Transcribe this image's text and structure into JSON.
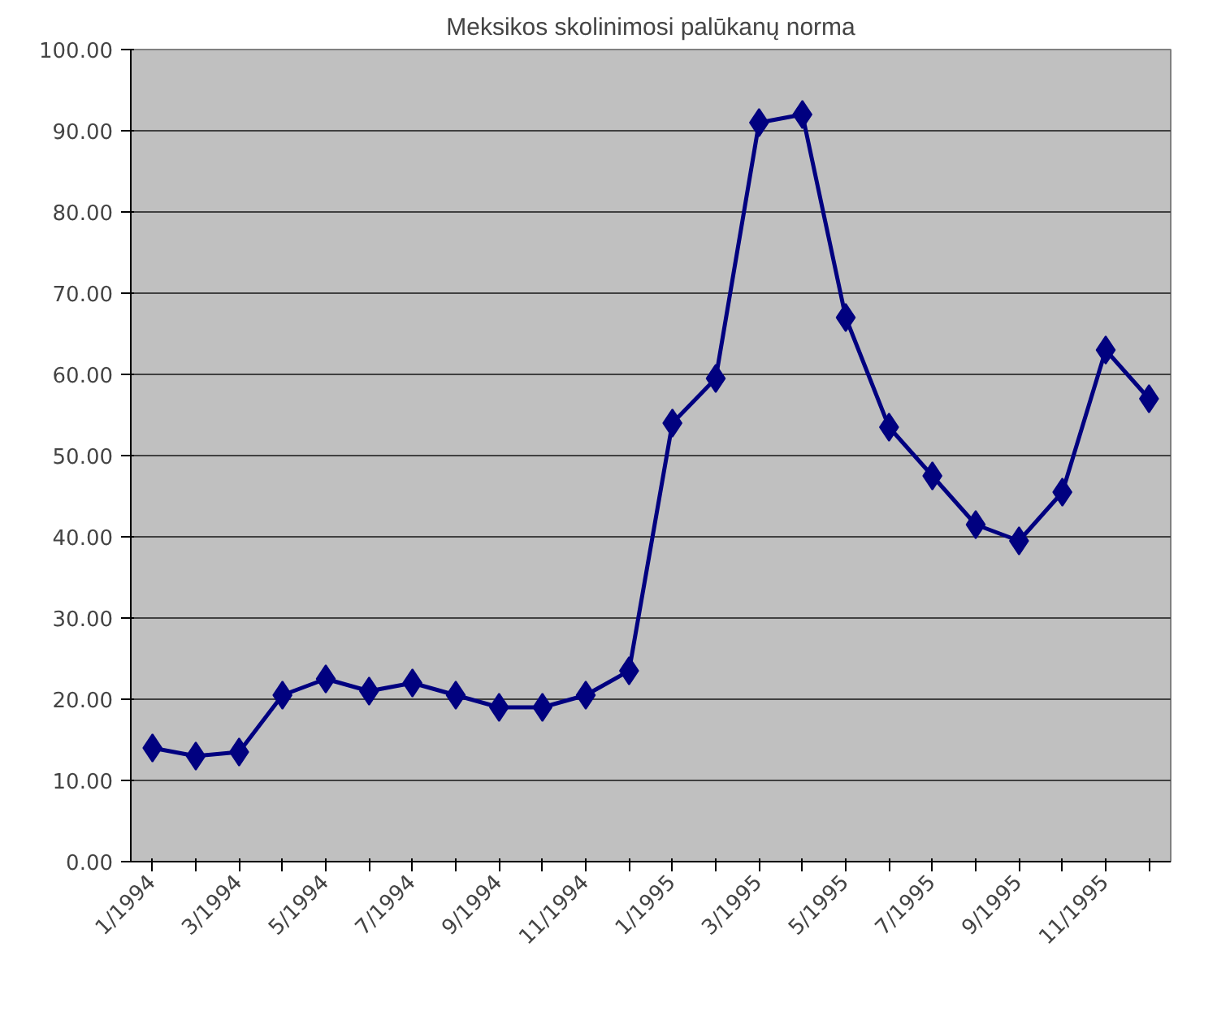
{
  "chart_data": {
    "type": "line",
    "title": "Meksikos skolinimosi palūkanų norma",
    "categories": [
      "1/1994",
      null,
      "3/1994",
      null,
      "5/1994",
      null,
      "7/1994",
      null,
      "9/1994",
      null,
      "11/1994",
      null,
      "1/1995",
      null,
      "3/1995",
      null,
      "5/1995",
      null,
      "7/1995",
      null,
      "9/1995",
      null,
      "11/1995",
      null
    ],
    "series": [
      {
        "color": "#000080",
        "values": [
          14,
          13,
          13.5,
          20.5,
          22.5,
          21,
          22,
          20.5,
          19,
          19,
          20.5,
          23.5,
          54,
          59.5,
          91,
          92,
          67,
          53.5,
          47.5,
          41.5,
          39.5,
          45.5,
          63,
          57
        ]
      }
    ],
    "ylim": [
      0,
      100
    ],
    "yticks": [
      {
        "value": 0,
        "label": "0.00"
      },
      {
        "value": 10,
        "label": "10.00"
      },
      {
        "value": 20,
        "label": "20.00"
      },
      {
        "value": 30,
        "label": "30.00"
      },
      {
        "value": 40,
        "label": "40.00"
      },
      {
        "value": 50,
        "label": "50.00"
      },
      {
        "value": 60,
        "label": "60.00"
      },
      {
        "value": 70,
        "label": "70.00"
      },
      {
        "value": 80,
        "label": "80.00"
      },
      {
        "value": 90,
        "label": "90.00"
      },
      {
        "value": 100,
        "label": "100.00"
      }
    ],
    "grid": "y",
    "marker": "diamond",
    "line_style": "solid"
  }
}
